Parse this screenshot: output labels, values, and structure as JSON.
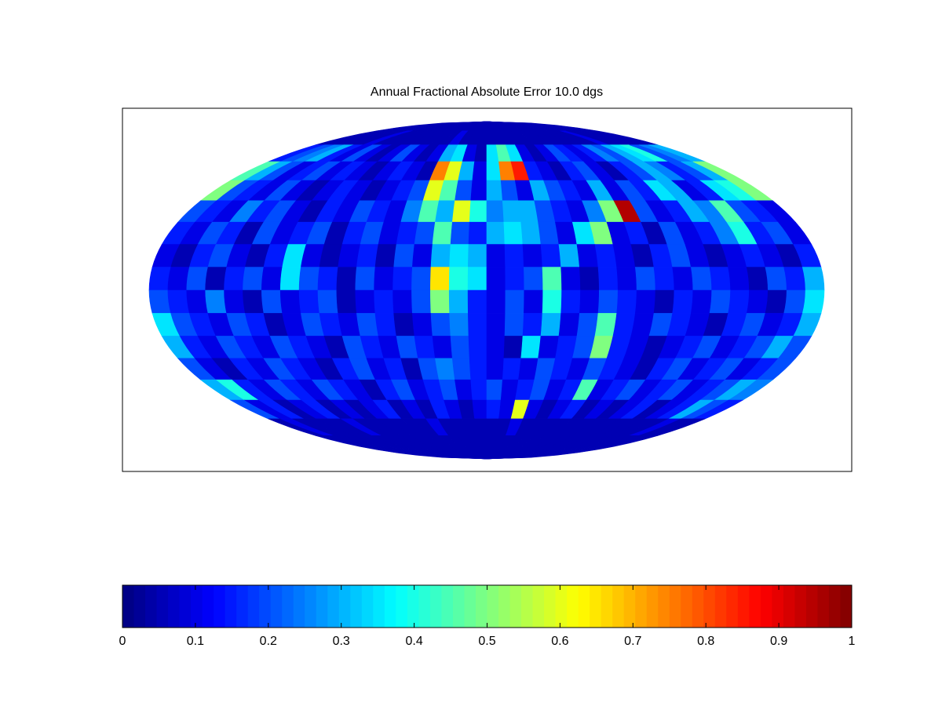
{
  "chart_data": {
    "type": "heatmap",
    "title": "Annual Fractional Absolute Error 10.0 dgs",
    "projection": "mollweide",
    "colormap": "jet",
    "clim": [
      0,
      1
    ],
    "cticks": [
      0,
      0.1,
      0.2,
      0.3,
      0.4,
      0.5,
      0.6,
      0.7,
      0.8,
      0.9,
      1
    ],
    "values": [
      [
        0.05,
        0.05,
        0.05,
        0.05,
        0.05,
        0.05,
        0.05,
        0.05,
        0.05,
        0.05,
        0.05,
        0.05,
        0.05,
        0.05,
        0.05,
        0.05,
        0.05,
        0.05,
        0.05,
        0.05,
        0.05,
        0.05,
        0.05,
        0.05,
        0.05,
        0.05,
        0.05,
        0.05,
        0.05,
        0.05,
        0.05,
        0.05,
        0.05,
        0.05,
        0.05,
        0.05
      ],
      [
        0.05,
        0.05,
        0.05,
        0.05,
        0.05,
        0.1,
        0.05,
        0.05,
        0.05,
        0.05,
        0.05,
        0.05,
        0.05,
        0.05,
        0.1,
        0.05,
        0.05,
        0.05,
        0.05,
        0.05,
        0.05,
        0.05,
        0.05,
        0.05,
        0.05,
        0.05,
        0.05,
        0.05,
        0.05,
        0.05,
        0.1,
        0.05,
        0.05,
        0.05,
        0.05,
        0.05
      ],
      [
        0.15,
        0.2,
        0.25,
        0.3,
        0.15,
        0.1,
        0.2,
        0.1,
        0.05,
        0.1,
        0.2,
        0.1,
        0.05,
        0.1,
        0.3,
        0.35,
        0.1,
        0.05,
        0.35,
        0.45,
        0.35,
        0.1,
        0.05,
        0.1,
        0.2,
        0.15,
        0.1,
        0.15,
        0.25,
        0.2,
        0.3,
        0.35,
        0.4,
        0.2,
        0.25,
        0.3
      ],
      [
        0.45,
        0.3,
        0.2,
        0.1,
        0.15,
        0.2,
        0.1,
        0.15,
        0.1,
        0.05,
        0.1,
        0.15,
        0.1,
        0.05,
        0.75,
        0.6,
        0.3,
        0.1,
        0.35,
        0.75,
        0.85,
        0.15,
        0.1,
        0.05,
        0.15,
        0.2,
        0.1,
        0.05,
        0.15,
        0.2,
        0.3,
        0.25,
        0.15,
        0.2,
        0.3,
        0.5
      ],
      [
        0.5,
        0.2,
        0.15,
        0.1,
        0.2,
        0.1,
        0.05,
        0.1,
        0.15,
        0.1,
        0.05,
        0.1,
        0.15,
        0.2,
        0.6,
        0.45,
        0.2,
        0.1,
        0.3,
        0.2,
        0.1,
        0.3,
        0.2,
        0.15,
        0.1,
        0.3,
        0.1,
        0.2,
        0.15,
        0.35,
        0.3,
        0.1,
        0.15,
        0.35,
        0.4,
        0.5
      ],
      [
        0.2,
        0.15,
        0.1,
        0.25,
        0.15,
        0.2,
        0.1,
        0.05,
        0.15,
        0.1,
        0.2,
        0.15,
        0.1,
        0.25,
        0.45,
        0.3,
        0.6,
        0.4,
        0.25,
        0.3,
        0.3,
        0.2,
        0.15,
        0.1,
        0.25,
        0.5,
        0.95,
        0.2,
        0.1,
        0.15,
        0.3,
        0.25,
        0.45,
        0.2,
        0.15,
        0.1
      ],
      [
        0.15,
        0.1,
        0.2,
        0.15,
        0.05,
        0.2,
        0.1,
        0.15,
        0.2,
        0.05,
        0.15,
        0.2,
        0.1,
        0.15,
        0.2,
        0.45,
        0.2,
        0.15,
        0.3,
        0.35,
        0.3,
        0.2,
        0.1,
        0.35,
        0.5,
        0.1,
        0.15,
        0.05,
        0.2,
        0.1,
        0.15,
        0.25,
        0.4,
        0.15,
        0.2,
        0.1
      ],
      [
        0.1,
        0.05,
        0.15,
        0.2,
        0.1,
        0.05,
        0.15,
        0.35,
        0.1,
        0.05,
        0.1,
        0.15,
        0.05,
        0.2,
        0.1,
        0.3,
        0.35,
        0.3,
        0.1,
        0.15,
        0.1,
        0.15,
        0.3,
        0.1,
        0.15,
        0.1,
        0.05,
        0.15,
        0.2,
        0.1,
        0.05,
        0.1,
        0.15,
        0.1,
        0.05,
        0.15
      ],
      [
        0.15,
        0.1,
        0.2,
        0.05,
        0.15,
        0.2,
        0.1,
        0.35,
        0.2,
        0.15,
        0.05,
        0.2,
        0.1,
        0.15,
        0.2,
        0.65,
        0.4,
        0.35,
        0.1,
        0.15,
        0.2,
        0.45,
        0.1,
        0.05,
        0.15,
        0.1,
        0.2,
        0.15,
        0.1,
        0.2,
        0.15,
        0.1,
        0.05,
        0.2,
        0.15,
        0.3
      ],
      [
        0.2,
        0.15,
        0.1,
        0.25,
        0.1,
        0.05,
        0.2,
        0.1,
        0.15,
        0.2,
        0.05,
        0.1,
        0.15,
        0.1,
        0.2,
        0.5,
        0.3,
        0.15,
        0.1,
        0.2,
        0.1,
        0.4,
        0.15,
        0.1,
        0.2,
        0.15,
        0.1,
        0.05,
        0.15,
        0.1,
        0.2,
        0.15,
        0.1,
        0.05,
        0.2,
        0.35
      ],
      [
        0.35,
        0.2,
        0.15,
        0.1,
        0.2,
        0.15,
        0.05,
        0.1,
        0.2,
        0.15,
        0.1,
        0.2,
        0.15,
        0.05,
        0.1,
        0.2,
        0.25,
        0.15,
        0.1,
        0.2,
        0.15,
        0.3,
        0.1,
        0.2,
        0.45,
        0.15,
        0.1,
        0.2,
        0.15,
        0.1,
        0.05,
        0.15,
        0.2,
        0.1,
        0.15,
        0.3
      ],
      [
        0.3,
        0.15,
        0.1,
        0.2,
        0.15,
        0.1,
        0.2,
        0.15,
        0.1,
        0.05,
        0.2,
        0.15,
        0.1,
        0.2,
        0.15,
        0.1,
        0.2,
        0.15,
        0.1,
        0.05,
        0.35,
        0.1,
        0.15,
        0.2,
        0.5,
        0.15,
        0.1,
        0.05,
        0.1,
        0.15,
        0.2,
        0.1,
        0.15,
        0.2,
        0.3,
        0.2
      ],
      [
        0.2,
        0.1,
        0.05,
        0.15,
        0.1,
        0.2,
        0.15,
        0.1,
        0.05,
        0.15,
        0.2,
        0.1,
        0.15,
        0.05,
        0.2,
        0.25,
        0.2,
        0.15,
        0.1,
        0.15,
        0.1,
        0.2,
        0.15,
        0.1,
        0.2,
        0.15,
        0.1,
        0.05,
        0.15,
        0.2,
        0.1,
        0.15,
        0.2,
        0.1,
        0.15,
        0.2
      ],
      [
        0.3,
        0.4,
        0.15,
        0.1,
        0.2,
        0.15,
        0.1,
        0.2,
        0.15,
        0.1,
        0.05,
        0.15,
        0.2,
        0.1,
        0.15,
        0.2,
        0.1,
        0.15,
        0.2,
        0.1,
        0.15,
        0.2,
        0.1,
        0.15,
        0.45,
        0.1,
        0.15,
        0.2,
        0.1,
        0.15,
        0.2,
        0.1,
        0.15,
        0.2,
        0.3,
        0.25
      ],
      [
        0.2,
        0.1,
        0.15,
        0.05,
        0.1,
        0.15,
        0.05,
        0.1,
        0.05,
        0.1,
        0.15,
        0.05,
        0.1,
        0.05,
        0.15,
        0.1,
        0.05,
        0.1,
        0.15,
        0.1,
        0.6,
        0.1,
        0.05,
        0.1,
        0.15,
        0.05,
        0.1,
        0.05,
        0.1,
        0.15,
        0.05,
        0.1,
        0.15,
        0.3,
        0.2,
        0.15
      ],
      [
        0.05,
        0.1,
        0.05,
        0.05,
        0.05,
        0.05,
        0.1,
        0.05,
        0.05,
        0.05,
        0.05,
        0.05,
        0.05,
        0.1,
        0.05,
        0.05,
        0.05,
        0.05,
        0.05,
        0.05,
        0.1,
        0.05,
        0.05,
        0.05,
        0.05,
        0.05,
        0.05,
        0.05,
        0.05,
        0.05,
        0.05,
        0.05,
        0.05,
        0.1,
        0.05,
        0.05
      ],
      [
        0.05,
        0.05,
        0.05,
        0.05,
        0.05,
        0.05,
        0.05,
        0.05,
        0.05,
        0.05,
        0.05,
        0.05,
        0.05,
        0.05,
        0.05,
        0.05,
        0.05,
        0.05,
        0.05,
        0.05,
        0.05,
        0.05,
        0.05,
        0.05,
        0.05,
        0.05,
        0.05,
        0.05,
        0.05,
        0.05,
        0.05,
        0.05,
        0.05,
        0.05,
        0.05,
        0.05
      ],
      [
        0.05,
        0.05,
        0.05,
        0.05,
        0.05,
        0.05,
        0.05,
        0.05,
        0.05,
        0.05,
        0.05,
        0.05,
        0.05,
        0.05,
        0.05,
        0.05,
        0.05,
        0.05,
        0.05,
        0.05,
        0.05,
        0.05,
        0.05,
        0.05,
        0.05,
        0.05,
        0.05,
        0.05,
        0.05,
        0.05,
        0.05,
        0.05,
        0.05,
        0.05,
        0.05,
        0.05
      ]
    ]
  }
}
